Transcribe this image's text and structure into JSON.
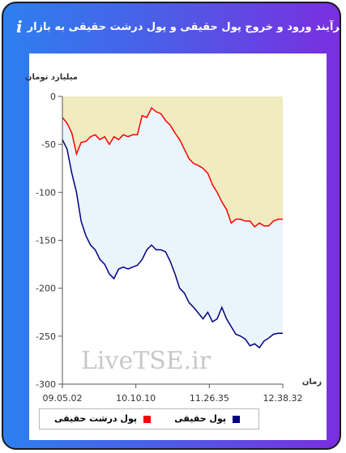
{
  "header": {
    "title": "برآیند ورود و خروج پول حقیقی و پول درشت حقیقی به بازار",
    "info_icon": "i",
    "link_icon": "link-icon"
  },
  "chart_data": {
    "type": "area",
    "ylabel": "میلیارد تومان",
    "xlabel": "زمان",
    "ylim": [
      -300,
      0
    ],
    "yticks": [
      0,
      -50,
      -100,
      -150,
      -200,
      -250,
      -300
    ],
    "x_ticks": [
      "09.05.02",
      "10.10.10",
      "11.26.35",
      "12.38.32"
    ],
    "watermark": "LiveTSE.ir",
    "grid": false,
    "legend": "bottom",
    "series": [
      {
        "name": "پول حقیقی",
        "color": "#000080",
        "fill": "#eaf4fb",
        "values": [
          -45,
          -55,
          -80,
          -100,
          -130,
          -145,
          -155,
          -160,
          -170,
          -175,
          -185,
          -190,
          -180,
          -178,
          -180,
          -178,
          -176,
          -170,
          -160,
          -155,
          -160,
          -160,
          -162,
          -172,
          -185,
          -200,
          -205,
          -215,
          -220,
          -226,
          -232,
          -225,
          -235,
          -232,
          -220,
          -232,
          -240,
          -248,
          -250,
          -253,
          -260,
          -258,
          -262,
          -255,
          -252,
          -248,
          -247,
          -247
        ]
      },
      {
        "name": "پول درشت حقیقی",
        "color": "#ff0000",
        "fill": "#f0ebc0",
        "values": [
          -22,
          -28,
          -38,
          -60,
          -48,
          -47,
          -42,
          -40,
          -45,
          -42,
          -50,
          -42,
          -45,
          -40,
          -42,
          -40,
          -40,
          -20,
          -22,
          -12,
          -16,
          -18,
          -25,
          -30,
          -38,
          -45,
          -55,
          -65,
          -70,
          -72,
          -75,
          -80,
          -92,
          -100,
          -110,
          -118,
          -132,
          -128,
          -128,
          -130,
          -130,
          -136,
          -132,
          -135,
          -135,
          -130,
          -128,
          -128
        ]
      }
    ]
  }
}
